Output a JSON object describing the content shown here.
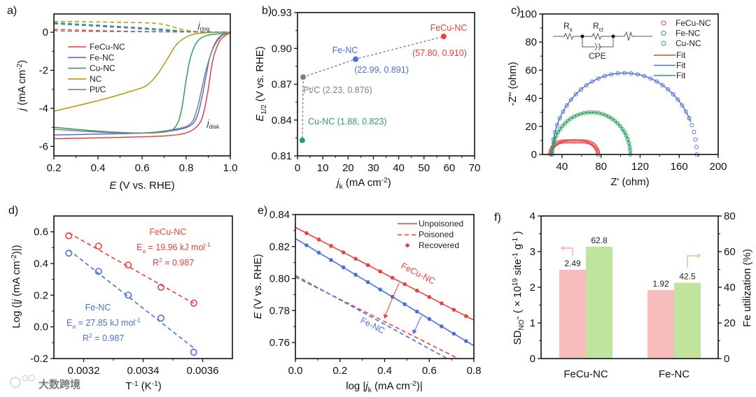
{
  "colors": {
    "feCu": "#e8413f",
    "fe": "#4a6fe0",
    "cu": "#2aa060",
    "nc": "#b8960f",
    "pt": "#808080",
    "pinkBar": "#f9bcbc",
    "greenBar": "#c0e49e"
  },
  "watermark": "大数跨境",
  "chart_data": [
    {
      "panel": "a)",
      "type": "line",
      "xlabel": {
        "italic": "E",
        "rest": " (V vs. RHE)"
      },
      "ylabel": {
        "italic": "j",
        "rest": " (mA cm",
        "sup": "-2",
        "end": ")"
      },
      "xlim": [
        0.2,
        1.0
      ],
      "ylim": [
        -6.5,
        0.96
      ],
      "xticks": [
        "0.2",
        "0.4",
        "0.6",
        "0.8",
        "1.0"
      ],
      "yticks": [
        "0",
        "-2",
        "-4",
        "-6"
      ],
      "annotations": {
        "ring_main": "j",
        "ring_sub": "ring",
        "disk_main": "j",
        "disk_sub": "disk"
      },
      "series": [
        {
          "name": "FeCu-NC",
          "color": "#e8413f",
          "disk": [
            [
              0.2,
              -5.6
            ],
            [
              0.6,
              -5.5
            ],
            [
              0.75,
              -5.4
            ],
            [
              0.82,
              -5.2
            ],
            [
              0.86,
              -4.8
            ],
            [
              0.88,
              -4.2
            ],
            [
              0.9,
              -3
            ],
            [
              0.92,
              -1.5
            ],
            [
              0.95,
              -0.5
            ],
            [
              0.98,
              -0.15
            ],
            [
              1.0,
              -0.05
            ]
          ],
          "ring": [
            [
              0.2,
              0.15
            ],
            [
              0.5,
              0.06
            ],
            [
              0.8,
              0.02
            ],
            [
              1.0,
              0
            ]
          ]
        },
        {
          "name": "Fe-NC",
          "color": "#4a6fe0",
          "disk": [
            [
              0.2,
              -5.4
            ],
            [
              0.6,
              -5.3
            ],
            [
              0.75,
              -5.15
            ],
            [
              0.82,
              -4.9
            ],
            [
              0.85,
              -4.4
            ],
            [
              0.87,
              -3.5
            ],
            [
              0.89,
              -2.3
            ],
            [
              0.91,
              -1.2
            ],
            [
              0.94,
              -0.4
            ],
            [
              0.97,
              -0.1
            ],
            [
              1.0,
              -0.05
            ]
          ],
          "ring": [
            [
              0.2,
              0.45
            ],
            [
              0.5,
              0.25
            ],
            [
              0.7,
              0.1
            ],
            [
              0.85,
              0.02
            ],
            [
              1.0,
              0
            ]
          ]
        },
        {
          "name": "Cu-NC",
          "color": "#2aa060",
          "disk": [
            [
              0.2,
              -5.0
            ],
            [
              0.4,
              -5.2
            ],
            [
              0.6,
              -5.3
            ],
            [
              0.72,
              -5.2
            ],
            [
              0.76,
              -4.8
            ],
            [
              0.78,
              -4.0
            ],
            [
              0.8,
              -2.5
            ],
            [
              0.82,
              -1.3
            ],
            [
              0.85,
              -0.5
            ],
            [
              0.9,
              -0.15
            ],
            [
              1.0,
              -0.05
            ]
          ],
          "ring": [
            [
              0.2,
              0.5
            ],
            [
              0.5,
              0.3
            ],
            [
              0.7,
              0.15
            ],
            [
              0.8,
              0.05
            ],
            [
              1.0,
              0
            ]
          ]
        },
        {
          "name": "NC",
          "color": "#b8960f",
          "disk": [
            [
              0.2,
              -4.15
            ],
            [
              0.4,
              -3.6
            ],
            [
              0.55,
              -3.1
            ],
            [
              0.62,
              -2.8
            ],
            [
              0.67,
              -2.2
            ],
            [
              0.72,
              -1.3
            ],
            [
              0.76,
              -0.6
            ],
            [
              0.82,
              -0.15
            ],
            [
              0.9,
              -0.02
            ],
            [
              1.0,
              0
            ]
          ],
          "ring": [
            [
              0.2,
              0.57
            ],
            [
              0.6,
              0.5
            ],
            [
              0.7,
              0.4
            ],
            [
              0.8,
              0.1
            ],
            [
              0.9,
              0.02
            ],
            [
              1.0,
              0
            ]
          ]
        },
        {
          "name": "Pt/C",
          "color": "#808080",
          "disk": [
            [
              0.2,
              -5.1
            ],
            [
              0.4,
              -5.25
            ],
            [
              0.6,
              -5.3
            ],
            [
              0.75,
              -5.1
            ],
            [
              0.82,
              -4.8
            ],
            [
              0.85,
              -4.0
            ],
            [
              0.87,
              -3.0
            ],
            [
              0.89,
              -2.0
            ],
            [
              0.92,
              -0.9
            ],
            [
              0.96,
              -0.2
            ],
            [
              1.0,
              -0.05
            ]
          ],
          "ring": [
            [
              0.2,
              0.1
            ],
            [
              0.3,
              0.05
            ],
            [
              1.0,
              0
            ]
          ]
        }
      ]
    },
    {
      "panel": "b)",
      "type": "scatter",
      "xlabel": {
        "italic": "j",
        "sub": "k",
        "rest": " (mA cm",
        "sup": "-2",
        "end": ")"
      },
      "ylabel": {
        "italic": "E",
        "sub": "1/2",
        "rest": " (V vs. RHE)"
      },
      "xlim": [
        0,
        70
      ],
      "ylim": [
        0.81,
        0.93
      ],
      "xticks": [
        "0",
        "10",
        "20",
        "30",
        "40",
        "50",
        "60",
        "70"
      ],
      "yticks": [
        "0.81",
        "0.84",
        "0.87",
        "0.90",
        "0.93"
      ],
      "points": [
        {
          "name": "FeCu-NC",
          "x": 57.8,
          "y": 0.91,
          "color": "#e8413f",
          "label": "(57.80, 0.910)"
        },
        {
          "name": "Fe-NC",
          "x": 22.99,
          "y": 0.891,
          "color": "#4a6fe0",
          "label": "(22.99, 0.891)"
        },
        {
          "name": "Pt/C",
          "x": 2.23,
          "y": 0.876,
          "color": "#808080",
          "label": "Pt/C (2.23, 0.876)"
        },
        {
          "name": "Cu-NC",
          "x": 1.88,
          "y": 0.823,
          "color": "#2aa060",
          "label": "Cu-NC (1.88, 0.823)"
        }
      ]
    },
    {
      "panel": "c)",
      "type": "scatter",
      "xlabel": "Z' (ohm)",
      "ylabel": "-Z'' (ohm)",
      "xlim": [
        20,
        200
      ],
      "ylim": [
        0,
        100
      ],
      "xticks": [
        "40",
        "80",
        "120",
        "160",
        "200"
      ],
      "yticks": [
        "0",
        "20",
        "40",
        "60",
        "80",
        "100"
      ],
      "circuit": {
        "rs": "R",
        "rs_sub": "s",
        "rct": "R",
        "rct_sub": "ct",
        "cpe": "CPE"
      },
      "fit_label": "Fit",
      "series": [
        {
          "name": "FeCu-NC",
          "color": "#e8413f",
          "Rs": 28,
          "Rct": 49,
          "peak": 10.5,
          "fit_end": 0.92
        },
        {
          "name": "Fe-NC",
          "color": "#4a6fe0",
          "Rs": 30,
          "Rct": 148,
          "peak": 58,
          "fit_end": 0.87
        },
        {
          "name": "Cu-NC",
          "color": "#2aa060",
          "Rs": 30,
          "Rct": 80,
          "peak": 30,
          "fit_end": 1.0
        }
      ]
    },
    {
      "panel": "d)",
      "type": "scatter",
      "xlabel": {
        "main": "T",
        "sup": "-1",
        "rest": " (K",
        "sup2": "-1",
        "end": ")"
      },
      "ylabel": {
        "pre": "Log (|",
        "italic": "j",
        "rest": " (mA cm",
        "sup": "-2",
        "end": ")|)"
      },
      "xlim": [
        0.0031,
        0.0037
      ],
      "ylim": [
        -0.2,
        0.7
      ],
      "xticks": [
        "0.0032",
        "0.0034",
        "0.0036"
      ],
      "yticks": [
        "-0.2",
        "0.0",
        "0.2",
        "0.4",
        "0.6"
      ],
      "series": [
        {
          "name": "FeCu-NC",
          "color": "#e8413f",
          "x": [
            0.00315,
            0.00325,
            0.00335,
            0.00346,
            0.00357
          ],
          "y": [
            0.575,
            0.51,
            0.39,
            0.25,
            0.15
          ],
          "ea": "E",
          "ea_sub": "a",
          "ea_val": " = 19.96 kJ mol",
          "ea_sup": "-1",
          "r2": "R",
          "r2_sup": "2",
          "r2_val": " = 0.987"
        },
        {
          "name": "Fe-NC",
          "color": "#4a6fe0",
          "x": [
            0.00315,
            0.00325,
            0.00335,
            0.00346,
            0.00357
          ],
          "y": [
            0.465,
            0.35,
            0.2,
            0.055,
            -0.16
          ],
          "ea": "E",
          "ea_sub": "a",
          "ea_val": " = 27.85 kJ mol",
          "ea_sup": "-1",
          "r2": "R",
          "r2_sup": "2",
          "r2_val": " = 0.987"
        }
      ]
    },
    {
      "panel": "e)",
      "type": "line",
      "xlabel": {
        "pre": "log |",
        "italic": "j",
        "sub": "k",
        "rest": " (mA cm",
        "sup": "-2",
        "end": ")|"
      },
      "ylabel": {
        "italic": "E",
        "rest": " (V vs. RHE)"
      },
      "xlim": [
        0,
        0.8
      ],
      "ylim": [
        0.75,
        0.84
      ],
      "xticks": [
        "0.0",
        "0.2",
        "0.4",
        "0.6",
        "0.8"
      ],
      "yticks": [
        "0.76",
        "0.78",
        "0.80",
        "0.82",
        "0.84"
      ],
      "legend": [
        "Unpoisoned",
        "Poisoned",
        "Recovered"
      ],
      "series": [
        {
          "name": "FeCu-NC",
          "color": "#e8413f",
          "unpoisoned": [
            [
              0,
              0.832
            ],
            [
              0.8,
              0.774
            ]
          ],
          "poisoned": [
            [
              0,
              0.801
            ],
            [
              0.73,
              0.75
            ]
          ]
        },
        {
          "name": "Fe-NC",
          "color": "#4a6fe0",
          "unpoisoned": [
            [
              0,
              0.825
            ],
            [
              0.8,
              0.758
            ]
          ],
          "poisoned": [
            [
              0,
              0.802
            ],
            [
              0.68,
              0.75
            ]
          ]
        }
      ],
      "recovered_x": [
        0.05,
        0.105,
        0.16,
        0.215,
        0.27,
        0.325,
        0.38,
        0.435,
        0.49,
        0.545,
        0.6,
        0.655,
        0.71,
        0.765
      ]
    },
    {
      "panel": "f)",
      "type": "bar",
      "categories": [
        "FeCu-NC",
        "Fe-NC"
      ],
      "ylabel": {
        "pre": "SD",
        "sub": "NO",
        "subsup": "-",
        "mid": " ( × 10",
        "sup": "19",
        "rest": " site",
        "sup2": "-1",
        "rest2": " g",
        "sup3": "-1",
        "end": " )"
      },
      "ylabel_right": "Fe utilization (%)",
      "ylim": [
        0,
        4
      ],
      "ylim_right": [
        0,
        80
      ],
      "yticks": [
        "0",
        "1",
        "2",
        "3",
        "4"
      ],
      "yticks_right": [
        "0",
        "20",
        "40",
        "60",
        "80"
      ],
      "series": [
        {
          "name": "SD",
          "axis": "left",
          "color": "#f9bcbc",
          "values": [
            2.49,
            1.92
          ],
          "labels": [
            "2.49",
            "1.92"
          ]
        },
        {
          "name": "Fe utilization",
          "axis": "right",
          "color": "#c0e49e",
          "values": [
            62.8,
            42.5
          ],
          "labels": [
            "62.8",
            "42.5"
          ]
        }
      ]
    }
  ]
}
